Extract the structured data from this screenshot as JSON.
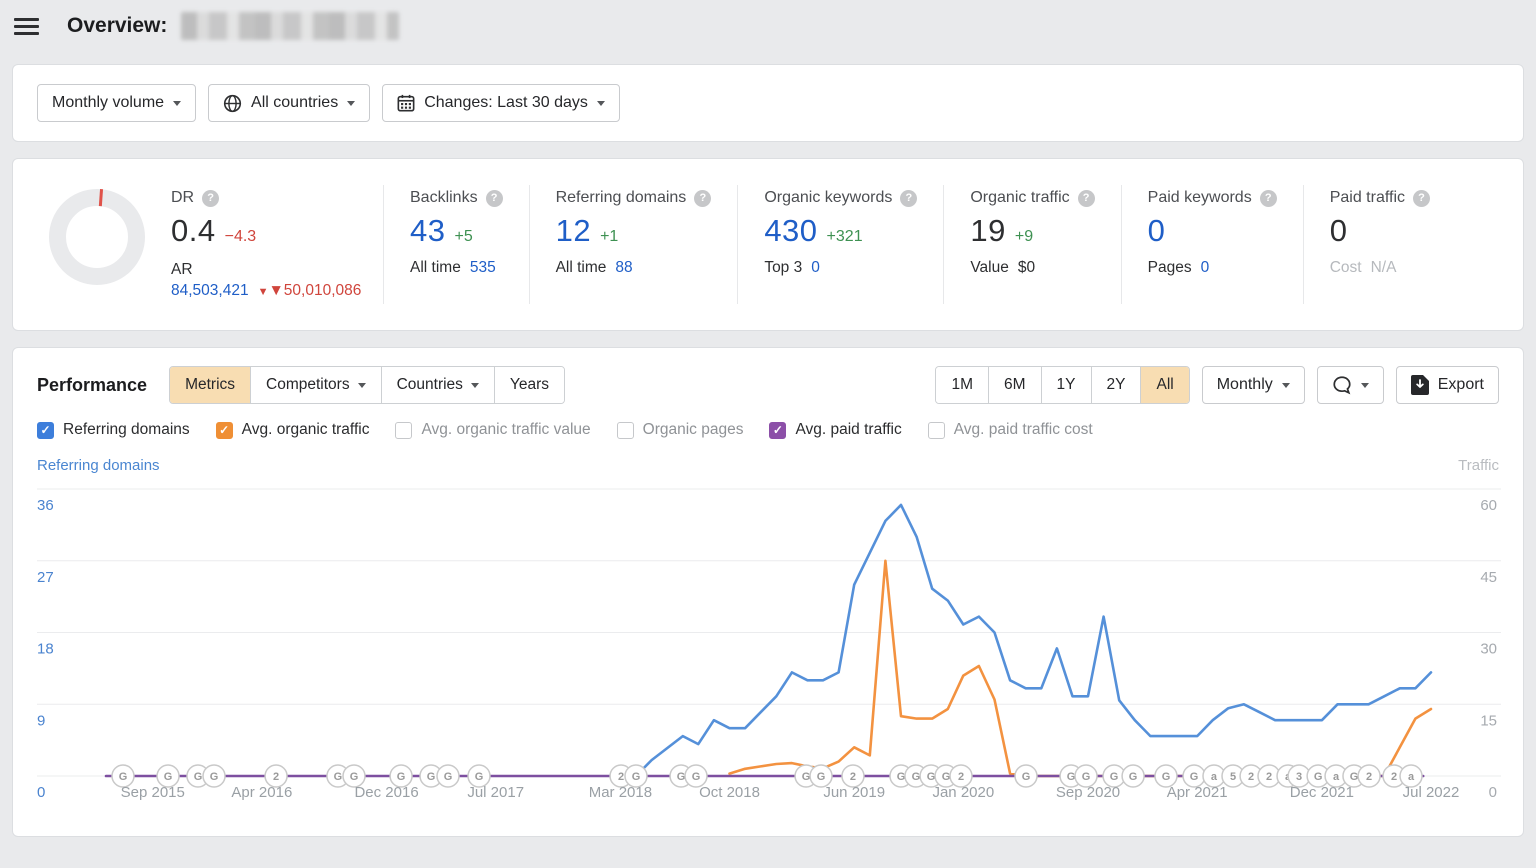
{
  "header": {
    "title": "Overview:"
  },
  "filters": {
    "volume_label": "Monthly volume",
    "countries_label": "All countries",
    "changes_label": "Changes: Last 30 days"
  },
  "metrics": [
    {
      "id": "dr",
      "label": "DR",
      "value": "0.4",
      "value_color": "dark",
      "delta": "−4.3",
      "delta_color": "red",
      "sub_label": "AR",
      "sub_value": "84,503,421",
      "sub_value_color": "blue",
      "sub_extra": "▼50,010,086",
      "gauge": true
    },
    {
      "id": "backlinks",
      "label": "Backlinks",
      "value": "43",
      "value_color": "blue",
      "delta": "+5",
      "delta_color": "green",
      "sub_label": "All time",
      "sub_value": "535",
      "sub_value_color": "blue"
    },
    {
      "id": "referring-domains",
      "label": "Referring domains",
      "value": "12",
      "value_color": "blue",
      "delta": "+1",
      "delta_color": "green",
      "sub_label": "All time",
      "sub_value": "88",
      "sub_value_color": "blue"
    },
    {
      "id": "organic-keywords",
      "label": "Organic keywords",
      "value": "430",
      "value_color": "blue",
      "delta": "+321",
      "delta_color": "green",
      "sub_label": "Top 3",
      "sub_value": "0",
      "sub_value_color": "blue"
    },
    {
      "id": "organic-traffic",
      "label": "Organic traffic",
      "value": "19",
      "value_color": "dark",
      "delta": "+9",
      "delta_color": "green",
      "sub_label": "Value",
      "sub_value": "$0",
      "sub_value_color": "dark"
    },
    {
      "id": "paid-keywords",
      "label": "Paid keywords",
      "value": "0",
      "value_color": "blue",
      "sub_label": "Pages",
      "sub_value": "0",
      "sub_value_color": "blue"
    },
    {
      "id": "paid-traffic",
      "label": "Paid traffic",
      "value": "0",
      "value_color": "dark",
      "sub_label": "Cost",
      "sub_label_color": "muted",
      "sub_value": "N/A",
      "sub_value_color": "muted"
    }
  ],
  "performance": {
    "title": "Performance",
    "tabs": [
      {
        "label": "Metrics",
        "active": true,
        "caret": false
      },
      {
        "label": "Competitors",
        "active": false,
        "caret": true
      },
      {
        "label": "Countries",
        "active": false,
        "caret": true
      },
      {
        "label": "Years",
        "active": false,
        "caret": false
      }
    ],
    "ranges": [
      {
        "label": "1M",
        "active": false
      },
      {
        "label": "6M",
        "active": false
      },
      {
        "label": "1Y",
        "active": false
      },
      {
        "label": "2Y",
        "active": false
      },
      {
        "label": "All",
        "active": true
      }
    ],
    "granularity_label": "Monthly",
    "export_label": "Export",
    "checkboxes": [
      {
        "label": "Referring domains",
        "checked": true,
        "color": "#3d7edb"
      },
      {
        "label": "Avg. organic traffic",
        "checked": true,
        "color": "#ef8f35"
      },
      {
        "label": "Avg. organic traffic value",
        "checked": false,
        "color": null
      },
      {
        "label": "Organic pages",
        "checked": false,
        "color": null
      },
      {
        "label": "Avg. paid traffic",
        "checked": true,
        "color": "#8c4fa8"
      },
      {
        "label": "Avg. paid traffic cost",
        "checked": false,
        "color": null
      }
    ]
  },
  "chart_data": {
    "type": "line",
    "x_unit": "months since Jun 2015",
    "left_axis": {
      "title": "Referring domains",
      "ticks": [
        36,
        27,
        18,
        9,
        0
      ],
      "max": 36,
      "color": "#4a83cf"
    },
    "right_axis": {
      "title": "Traffic",
      "ticks": [
        60,
        45,
        30,
        15,
        0
      ],
      "max": 60,
      "color": "#a6aaaf"
    },
    "x_ticks": [
      {
        "m": 3,
        "label": "Sep 2015"
      },
      {
        "m": 10,
        "label": "Apr 2016"
      },
      {
        "m": 18,
        "label": "Dec 2016"
      },
      {
        "m": 25,
        "label": "Jul 2017"
      },
      {
        "m": 33,
        "label": "Mar 2018"
      },
      {
        "m": 40,
        "label": "Oct 2018"
      },
      {
        "m": 48,
        "label": "Jun 2019"
      },
      {
        "m": 55,
        "label": "Jan 2020"
      },
      {
        "m": 63,
        "label": "Sep 2020"
      },
      {
        "m": 70,
        "label": "Apr 2021"
      },
      {
        "m": 78,
        "label": "Dec 2021"
      },
      {
        "m": 85,
        "label": "Jul 2022"
      }
    ],
    "series": [
      {
        "name": "Avg. organic traffic",
        "axis": "right",
        "color": "#f39240",
        "points": [
          [
            40,
            0.5
          ],
          [
            41,
            1.5
          ],
          [
            42,
            2
          ],
          [
            43,
            2.5
          ],
          [
            44,
            2.7
          ],
          [
            45,
            2
          ],
          [
            46,
            1.6
          ],
          [
            47,
            3
          ],
          [
            48,
            6
          ],
          [
            49,
            4.3
          ],
          [
            50,
            45
          ],
          [
            51,
            12.5
          ],
          [
            52,
            12
          ],
          [
            53,
            12
          ],
          [
            54,
            14
          ],
          [
            55,
            21
          ],
          [
            56,
            23
          ],
          [
            57,
            16
          ],
          [
            58,
            0.5
          ],
          [
            59,
            0
          ],
          [
            60,
            0
          ],
          [
            61,
            0
          ],
          [
            62,
            0
          ],
          [
            63,
            0
          ],
          [
            64,
            0
          ],
          [
            65,
            0
          ],
          [
            66,
            0
          ],
          [
            67,
            0
          ],
          [
            68,
            0
          ],
          [
            69,
            0
          ],
          [
            70,
            0
          ],
          [
            71,
            0
          ],
          [
            72,
            0
          ],
          [
            73,
            0
          ],
          [
            74,
            0
          ],
          [
            75,
            0
          ],
          [
            76,
            0
          ],
          [
            77,
            0
          ],
          [
            78,
            0
          ],
          [
            79,
            0
          ],
          [
            80,
            0
          ],
          [
            81,
            0
          ],
          [
            82,
            0
          ],
          [
            83,
            6
          ],
          [
            84,
            12
          ],
          [
            85,
            14
          ]
        ]
      },
      {
        "name": "Referring domains",
        "axis": "left",
        "color": "#5590d9",
        "points": [
          [
            34,
            0
          ],
          [
            35,
            2
          ],
          [
            36,
            3.5
          ],
          [
            37,
            5
          ],
          [
            38,
            4
          ],
          [
            39,
            7
          ],
          [
            40,
            6
          ],
          [
            41,
            6
          ],
          [
            42,
            8
          ],
          [
            43,
            10
          ],
          [
            44,
            13
          ],
          [
            45,
            12
          ],
          [
            46,
            12
          ],
          [
            47,
            13
          ],
          [
            48,
            24
          ],
          [
            49,
            28
          ],
          [
            50,
            32
          ],
          [
            51,
            34
          ],
          [
            52,
            30
          ],
          [
            53,
            23.5
          ],
          [
            54,
            22
          ],
          [
            55,
            19
          ],
          [
            56,
            20
          ],
          [
            57,
            18
          ],
          [
            58,
            12
          ],
          [
            59,
            11
          ],
          [
            60,
            11
          ],
          [
            61,
            16
          ],
          [
            62,
            10
          ],
          [
            63,
            10
          ],
          [
            64,
            20
          ],
          [
            65,
            9.5
          ],
          [
            66,
            7
          ],
          [
            67,
            5
          ],
          [
            68,
            5
          ],
          [
            69,
            5
          ],
          [
            70,
            5
          ],
          [
            71,
            7
          ],
          [
            72,
            8.5
          ],
          [
            73,
            9
          ],
          [
            74,
            8
          ],
          [
            75,
            7
          ],
          [
            76,
            7
          ],
          [
            77,
            7
          ],
          [
            78,
            7
          ],
          [
            79,
            9
          ],
          [
            80,
            9
          ],
          [
            81,
            9
          ],
          [
            82,
            10
          ],
          [
            83,
            11
          ],
          [
            84,
            11
          ],
          [
            85,
            13
          ]
        ]
      },
      {
        "name": "Avg. paid traffic",
        "axis": "right",
        "color": "#7d4fa0",
        "points": [
          [
            0,
            0
          ],
          [
            84.5,
            0
          ]
        ]
      }
    ],
    "annotations": [
      {
        "m": 1.09,
        "label": "G"
      },
      {
        "m": 3.98,
        "label": "G"
      },
      {
        "m": 5.9,
        "label": "G"
      },
      {
        "m": 6.93,
        "label": "G"
      },
      {
        "m": 10.91,
        "label": "2"
      },
      {
        "m": 14.88,
        "label": "G"
      },
      {
        "m": 15.91,
        "label": "G"
      },
      {
        "m": 18.93,
        "label": "G"
      },
      {
        "m": 20.85,
        "label": "G"
      },
      {
        "m": 21.94,
        "label": "G"
      },
      {
        "m": 23.93,
        "label": "G"
      },
      {
        "m": 33.04,
        "label": "2"
      },
      {
        "m": 34.0,
        "label": "G"
      },
      {
        "m": 36.89,
        "label": "G"
      },
      {
        "m": 37.85,
        "label": "G"
      },
      {
        "m": 44.91,
        "label": "G"
      },
      {
        "m": 45.87,
        "label": "G"
      },
      {
        "m": 47.92,
        "label": "2"
      },
      {
        "m": 51.0,
        "label": "G"
      },
      {
        "m": 51.96,
        "label": "G"
      },
      {
        "m": 52.93,
        "label": "G"
      },
      {
        "m": 53.89,
        "label": "G"
      },
      {
        "m": 54.85,
        "label": "2"
      },
      {
        "m": 59.02,
        "label": "G"
      },
      {
        "m": 61.91,
        "label": "G"
      },
      {
        "m": 62.87,
        "label": "G"
      },
      {
        "m": 64.67,
        "label": "G"
      },
      {
        "m": 65.89,
        "label": "G"
      },
      {
        "m": 68.0,
        "label": "G"
      },
      {
        "m": 69.8,
        "label": "G"
      },
      {
        "m": 71.08,
        "label": "a"
      },
      {
        "m": 72.3,
        "label": "5"
      },
      {
        "m": 73.46,
        "label": "2"
      },
      {
        "m": 74.61,
        "label": "2"
      },
      {
        "m": 75.83,
        "label": "a"
      },
      {
        "m": 76.54,
        "label": "3"
      },
      {
        "m": 77.76,
        "label": "G"
      },
      {
        "m": 78.91,
        "label": "a"
      },
      {
        "m": 80.06,
        "label": "G"
      },
      {
        "m": 81.03,
        "label": "2"
      },
      {
        "m": 82.63,
        "label": "2"
      },
      {
        "m": 83.72,
        "label": "a"
      }
    ],
    "grid": true,
    "x_label_color": "#9aa0a5",
    "annotation_style": {
      "fill": "#ffffff",
      "stroke": "#c9c9c9",
      "text": "#9a9a9a"
    }
  }
}
